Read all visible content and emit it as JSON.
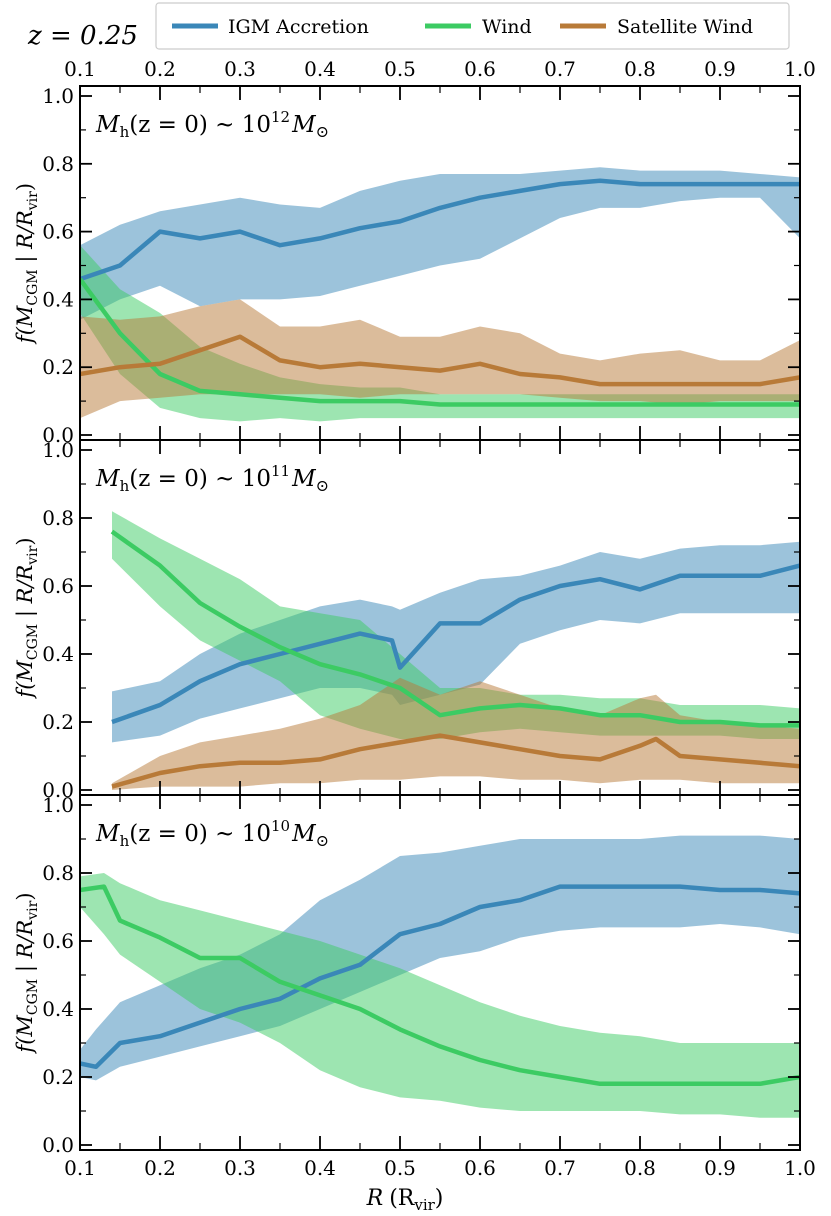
{
  "figure": {
    "redshift_label": "z = 0.25",
    "xlabel_main": "R",
    "xlabel_unit": "(R",
    "xlabel_unit_sub": "vir",
    "xlabel_close": ")",
    "ylabel_f": "f(M",
    "ylabel_sub1": "CGM",
    "ylabel_mid": "  |  R/R",
    "ylabel_sub2": "vir",
    "ylabel_close": ")"
  },
  "legend": {
    "items": [
      {
        "label": "IGM Accretion",
        "color": "#3a87b8"
      },
      {
        "label": "Wind",
        "color": "#3ccb63"
      },
      {
        "label": "Satellite Wind",
        "color": "#b87a38"
      }
    ]
  },
  "panels": [
    {
      "title_main": "M",
      "title_sub": "h",
      "title_mid": "(z = 0) ~ 10",
      "title_sup": "12",
      "title_end": "M",
      "title_sun": "⊙"
    },
    {
      "title_main": "M",
      "title_sub": "h",
      "title_mid": "(z = 0) ~ 10",
      "title_sup": "11",
      "title_end": "M",
      "title_sun": "⊙"
    },
    {
      "title_main": "M",
      "title_sub": "h",
      "title_mid": "(z = 0) ~ 10",
      "title_sup": "10",
      "title_end": "M",
      "title_sun": "⊙"
    }
  ],
  "chart_data": [
    {
      "type": "line",
      "xlim": [
        0.1,
        1.0
      ],
      "ylim": [
        0.0,
        1.0
      ],
      "xticks": [
        "0.1",
        "0.2",
        "0.3",
        "0.4",
        "0.5",
        "0.6",
        "0.7",
        "0.8",
        "0.9",
        "1.0"
      ],
      "yticks": [
        "0.0",
        "0.2",
        "0.4",
        "0.6",
        "0.8",
        "1.0"
      ],
      "series": [
        {
          "name": "IGM Accretion",
          "color": "#3a87b8",
          "x": [
            0.1,
            0.15,
            0.2,
            0.25,
            0.3,
            0.35,
            0.4,
            0.45,
            0.5,
            0.55,
            0.6,
            0.65,
            0.7,
            0.75,
            0.8,
            0.85,
            0.9,
            0.95,
            1.0
          ],
          "y": [
            0.46,
            0.5,
            0.6,
            0.58,
            0.6,
            0.56,
            0.58,
            0.61,
            0.63,
            0.67,
            0.7,
            0.72,
            0.74,
            0.75,
            0.74,
            0.74,
            0.74,
            0.74,
            0.74
          ],
          "lo": [
            0.34,
            0.4,
            0.44,
            0.38,
            0.4,
            0.4,
            0.41,
            0.44,
            0.47,
            0.5,
            0.52,
            0.58,
            0.64,
            0.67,
            0.67,
            0.69,
            0.7,
            0.7,
            0.58
          ],
          "hi": [
            0.56,
            0.62,
            0.66,
            0.68,
            0.7,
            0.68,
            0.67,
            0.72,
            0.75,
            0.77,
            0.77,
            0.77,
            0.78,
            0.79,
            0.78,
            0.78,
            0.78,
            0.77,
            0.76
          ]
        },
        {
          "name": "Wind",
          "color": "#3ccb63",
          "x": [
            0.1,
            0.15,
            0.2,
            0.25,
            0.3,
            0.35,
            0.4,
            0.45,
            0.5,
            0.55,
            0.6,
            0.65,
            0.7,
            0.75,
            0.8,
            0.85,
            0.9,
            0.95,
            1.0
          ],
          "y": [
            0.46,
            0.3,
            0.18,
            0.13,
            0.12,
            0.11,
            0.1,
            0.1,
            0.1,
            0.09,
            0.09,
            0.09,
            0.09,
            0.09,
            0.09,
            0.09,
            0.09,
            0.09,
            0.09
          ],
          "lo": [
            0.36,
            0.18,
            0.08,
            0.05,
            0.04,
            0.05,
            0.04,
            0.05,
            0.05,
            0.05,
            0.05,
            0.05,
            0.05,
            0.05,
            0.05,
            0.05,
            0.05,
            0.05,
            0.05
          ],
          "hi": [
            0.56,
            0.43,
            0.36,
            0.26,
            0.21,
            0.17,
            0.15,
            0.14,
            0.14,
            0.12,
            0.12,
            0.12,
            0.12,
            0.12,
            0.12,
            0.12,
            0.12,
            0.12,
            0.12
          ]
        },
        {
          "name": "Satellite Wind",
          "color": "#b87a38",
          "x": [
            0.1,
            0.15,
            0.2,
            0.25,
            0.3,
            0.35,
            0.4,
            0.45,
            0.5,
            0.55,
            0.6,
            0.65,
            0.7,
            0.75,
            0.8,
            0.85,
            0.9,
            0.95,
            1.0
          ],
          "y": [
            0.18,
            0.2,
            0.21,
            0.25,
            0.29,
            0.22,
            0.2,
            0.21,
            0.2,
            0.19,
            0.21,
            0.18,
            0.17,
            0.15,
            0.15,
            0.15,
            0.15,
            0.15,
            0.17
          ],
          "lo": [
            0.05,
            0.1,
            0.11,
            0.12,
            0.12,
            0.12,
            0.12,
            0.11,
            0.12,
            0.12,
            0.12,
            0.12,
            0.11,
            0.1,
            0.1,
            0.09,
            0.1,
            0.1,
            0.1
          ],
          "hi": [
            0.35,
            0.34,
            0.35,
            0.38,
            0.4,
            0.32,
            0.32,
            0.34,
            0.29,
            0.29,
            0.32,
            0.3,
            0.24,
            0.22,
            0.24,
            0.25,
            0.22,
            0.22,
            0.28
          ]
        }
      ]
    },
    {
      "type": "line",
      "xlim": [
        0.1,
        1.0
      ],
      "ylim": [
        0.0,
        1.0
      ],
      "xticks": [
        "0.1",
        "0.2",
        "0.3",
        "0.4",
        "0.5",
        "0.6",
        "0.7",
        "0.8",
        "0.9",
        "1.0"
      ],
      "yticks": [
        "0.0",
        "0.2",
        "0.4",
        "0.6",
        "0.8",
        "1.0"
      ],
      "series": [
        {
          "name": "IGM Accretion",
          "color": "#3a87b8",
          "x": [
            0.14,
            0.2,
            0.25,
            0.3,
            0.35,
            0.4,
            0.45,
            0.49,
            0.5,
            0.55,
            0.6,
            0.65,
            0.7,
            0.75,
            0.8,
            0.85,
            0.9,
            0.95,
            1.0
          ],
          "y": [
            0.2,
            0.25,
            0.32,
            0.37,
            0.4,
            0.43,
            0.46,
            0.44,
            0.36,
            0.49,
            0.49,
            0.56,
            0.6,
            0.62,
            0.59,
            0.63,
            0.63,
            0.63,
            0.66
          ],
          "lo": [
            0.14,
            0.16,
            0.21,
            0.24,
            0.27,
            0.3,
            0.3,
            0.28,
            0.25,
            0.28,
            0.31,
            0.43,
            0.47,
            0.5,
            0.49,
            0.52,
            0.52,
            0.52,
            0.52
          ],
          "hi": [
            0.29,
            0.32,
            0.4,
            0.46,
            0.5,
            0.54,
            0.56,
            0.54,
            0.53,
            0.58,
            0.62,
            0.63,
            0.66,
            0.7,
            0.68,
            0.71,
            0.72,
            0.72,
            0.73
          ]
        },
        {
          "name": "Wind",
          "color": "#3ccb63",
          "x": [
            0.14,
            0.2,
            0.25,
            0.3,
            0.35,
            0.4,
            0.45,
            0.5,
            0.55,
            0.6,
            0.65,
            0.7,
            0.75,
            0.8,
            0.85,
            0.9,
            0.95,
            1.0
          ],
          "y": [
            0.76,
            0.66,
            0.55,
            0.48,
            0.42,
            0.37,
            0.34,
            0.3,
            0.22,
            0.24,
            0.25,
            0.24,
            0.22,
            0.22,
            0.2,
            0.2,
            0.19,
            0.19
          ],
          "lo": [
            0.68,
            0.54,
            0.44,
            0.38,
            0.32,
            0.22,
            0.18,
            0.15,
            0.15,
            0.17,
            0.18,
            0.17,
            0.16,
            0.16,
            0.16,
            0.16,
            0.15,
            0.15
          ],
          "hi": [
            0.82,
            0.74,
            0.68,
            0.62,
            0.54,
            0.52,
            0.5,
            0.4,
            0.3,
            0.3,
            0.28,
            0.28,
            0.27,
            0.27,
            0.25,
            0.25,
            0.25,
            0.24
          ]
        },
        {
          "name": "Satellite Wind",
          "color": "#b87a38",
          "x": [
            0.14,
            0.2,
            0.25,
            0.3,
            0.35,
            0.4,
            0.45,
            0.5,
            0.55,
            0.6,
            0.65,
            0.7,
            0.75,
            0.8,
            0.82,
            0.85,
            0.9,
            0.95,
            1.0
          ],
          "y": [
            0.01,
            0.05,
            0.07,
            0.08,
            0.08,
            0.09,
            0.12,
            0.14,
            0.16,
            0.14,
            0.12,
            0.1,
            0.09,
            0.13,
            0.15,
            0.1,
            0.09,
            0.08,
            0.07
          ],
          "lo": [
            0.0,
            0.01,
            0.01,
            0.01,
            0.02,
            0.02,
            0.03,
            0.03,
            0.04,
            0.04,
            0.03,
            0.03,
            0.02,
            0.03,
            0.03,
            0.03,
            0.02,
            0.02,
            0.02
          ],
          "hi": [
            0.02,
            0.1,
            0.14,
            0.16,
            0.18,
            0.21,
            0.25,
            0.33,
            0.28,
            0.32,
            0.28,
            0.24,
            0.22,
            0.27,
            0.28,
            0.22,
            0.2,
            0.19,
            0.18
          ]
        }
      ]
    },
    {
      "type": "line",
      "xlim": [
        0.1,
        1.0
      ],
      "ylim": [
        0.0,
        1.0
      ],
      "xticks": [
        "0.1",
        "0.2",
        "0.3",
        "0.4",
        "0.5",
        "0.6",
        "0.7",
        "0.8",
        "0.9",
        "1.0"
      ],
      "yticks": [
        "0.0",
        "0.2",
        "0.4",
        "0.6",
        "0.8",
        "1.0"
      ],
      "series": [
        {
          "name": "IGM Accretion",
          "color": "#3a87b8",
          "x": [
            0.1,
            0.12,
            0.15,
            0.2,
            0.25,
            0.3,
            0.35,
            0.4,
            0.45,
            0.5,
            0.55,
            0.6,
            0.65,
            0.7,
            0.75,
            0.8,
            0.85,
            0.9,
            0.95,
            1.0
          ],
          "y": [
            0.24,
            0.23,
            0.3,
            0.32,
            0.36,
            0.4,
            0.43,
            0.49,
            0.53,
            0.62,
            0.65,
            0.7,
            0.72,
            0.76,
            0.76,
            0.76,
            0.76,
            0.75,
            0.75,
            0.74
          ],
          "lo": [
            0.2,
            0.19,
            0.23,
            0.26,
            0.29,
            0.32,
            0.35,
            0.4,
            0.45,
            0.5,
            0.55,
            0.57,
            0.61,
            0.63,
            0.64,
            0.64,
            0.64,
            0.65,
            0.64,
            0.62
          ],
          "hi": [
            0.28,
            0.34,
            0.42,
            0.47,
            0.52,
            0.56,
            0.62,
            0.72,
            0.78,
            0.85,
            0.86,
            0.88,
            0.9,
            0.9,
            0.9,
            0.9,
            0.91,
            0.91,
            0.91,
            0.9
          ]
        },
        {
          "name": "Wind",
          "color": "#3ccb63",
          "x": [
            0.1,
            0.13,
            0.15,
            0.2,
            0.25,
            0.3,
            0.35,
            0.4,
            0.45,
            0.5,
            0.55,
            0.6,
            0.65,
            0.7,
            0.75,
            0.8,
            0.85,
            0.9,
            0.95,
            1.0
          ],
          "y": [
            0.75,
            0.76,
            0.66,
            0.61,
            0.55,
            0.55,
            0.48,
            0.44,
            0.4,
            0.34,
            0.29,
            0.25,
            0.22,
            0.2,
            0.18,
            0.18,
            0.18,
            0.18,
            0.18,
            0.2
          ],
          "lo": [
            0.7,
            0.62,
            0.56,
            0.48,
            0.4,
            0.36,
            0.3,
            0.22,
            0.17,
            0.14,
            0.13,
            0.11,
            0.1,
            0.1,
            0.1,
            0.1,
            0.09,
            0.09,
            0.08,
            0.08
          ],
          "hi": [
            0.79,
            0.8,
            0.77,
            0.72,
            0.69,
            0.66,
            0.63,
            0.6,
            0.56,
            0.52,
            0.47,
            0.42,
            0.38,
            0.35,
            0.33,
            0.32,
            0.3,
            0.3,
            0.3,
            0.3
          ]
        }
      ]
    }
  ]
}
